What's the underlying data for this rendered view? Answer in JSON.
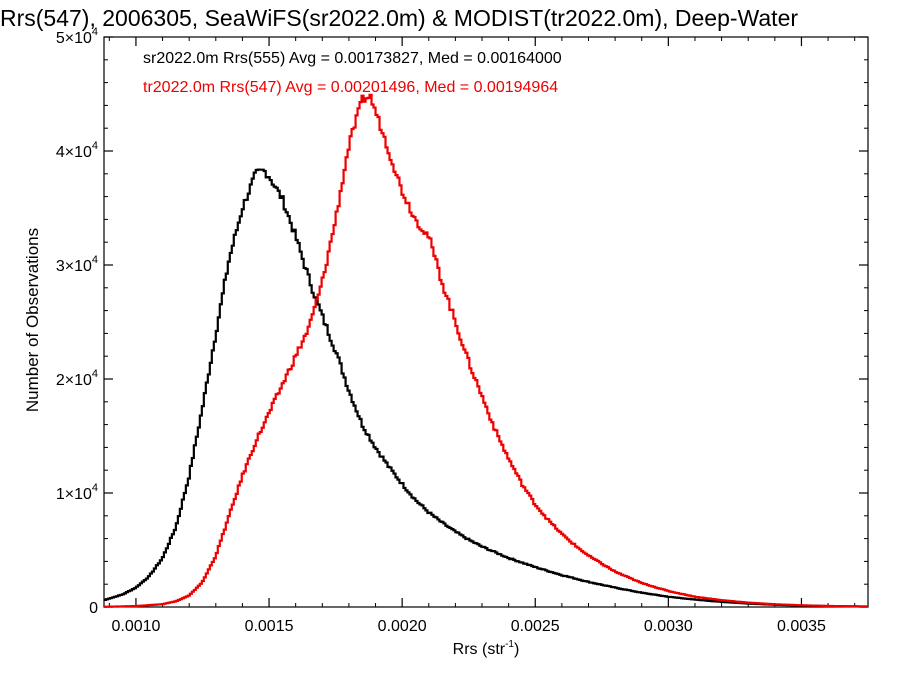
{
  "chart_data": {
    "type": "histogram",
    "title": "Rrs(547), 2006305, SeaWiFS(sr2022.0m) & MODIST(tr2022.0m), Deep-Water",
    "xlabel": "Rrs (str",
    "xlabel_sup": "-1",
    "xlabel_end": ")",
    "ylabel": "Number of Observations",
    "xlim": [
      0.00088,
      0.00375
    ],
    "ylim": [
      0,
      50000
    ],
    "xticks": [
      {
        "value": 0.001,
        "label": "0.0010"
      },
      {
        "value": 0.0015,
        "label": "0.0015"
      },
      {
        "value": 0.002,
        "label": "0.0020"
      },
      {
        "value": 0.0025,
        "label": "0.0025"
      },
      {
        "value": 0.003,
        "label": "0.0030"
      },
      {
        "value": 0.0035,
        "label": "0.0035"
      }
    ],
    "yticks": [
      {
        "value": 0,
        "label": "0",
        "sup": ""
      },
      {
        "value": 10000,
        "label": "1×10",
        "sup": "4"
      },
      {
        "value": 20000,
        "label": "2×10",
        "sup": "4"
      },
      {
        "value": 30000,
        "label": "3×10",
        "sup": "4"
      },
      {
        "value": 40000,
        "label": "4×10",
        "sup": "4"
      },
      {
        "value": 50000,
        "label": "5×10",
        "sup": "4"
      }
    ],
    "series": [
      {
        "name": "sr2022.0m Rrs(555)",
        "legend": "sr2022.0m Rrs(555) Avg = 0.00173827, Med = 0.00164000",
        "color": "#000000",
        "points": [
          [
            0.00088,
            600
          ],
          [
            0.00095,
            1100
          ],
          [
            0.001,
            1700
          ],
          [
            0.00105,
            2700
          ],
          [
            0.0011,
            4300
          ],
          [
            0.00115,
            7000
          ],
          [
            0.0012,
            11500
          ],
          [
            0.00125,
            17500
          ],
          [
            0.0013,
            24000
          ],
          [
            0.00135,
            30500
          ],
          [
            0.0014,
            35000
          ],
          [
            0.00145,
            38000
          ],
          [
            0.00148,
            38300
          ],
          [
            0.0015,
            37800
          ],
          [
            0.00155,
            35800
          ],
          [
            0.0016,
            32500
          ],
          [
            0.00165,
            28800
          ],
          [
            0.0017,
            25500
          ],
          [
            0.00175,
            22500
          ],
          [
            0.0018,
            19000
          ],
          [
            0.00185,
            16000
          ],
          [
            0.0019,
            14000
          ],
          [
            0.00195,
            12300
          ],
          [
            0.002,
            10800
          ],
          [
            0.00205,
            9400
          ],
          [
            0.0021,
            8300
          ],
          [
            0.00215,
            7400
          ],
          [
            0.0022,
            6600
          ],
          [
            0.00225,
            5900
          ],
          [
            0.0023,
            5300
          ],
          [
            0.00235,
            4800
          ],
          [
            0.0024,
            4300
          ],
          [
            0.0025,
            3500
          ],
          [
            0.0026,
            2800
          ],
          [
            0.0027,
            2200
          ],
          [
            0.0028,
            1700
          ],
          [
            0.0029,
            1250
          ],
          [
            0.003,
            900
          ],
          [
            0.0031,
            650
          ],
          [
            0.0032,
            450
          ],
          [
            0.0033,
            300
          ],
          [
            0.0034,
            200
          ],
          [
            0.0035,
            130
          ],
          [
            0.0036,
            80
          ],
          [
            0.00375,
            40
          ]
        ]
      },
      {
        "name": "tr2022.0m Rrs(547)",
        "legend": "tr2022.0m Rrs(547) Avg = 0.00201496, Med = 0.00194964",
        "color": "#ee0000",
        "points": [
          [
            0.00088,
            20
          ],
          [
            0.001,
            80
          ],
          [
            0.0011,
            250
          ],
          [
            0.00115,
            500
          ],
          [
            0.0012,
            1000
          ],
          [
            0.00125,
            2200
          ],
          [
            0.0013,
            4500
          ],
          [
            0.00135,
            8000
          ],
          [
            0.0014,
            11500
          ],
          [
            0.00145,
            14500
          ],
          [
            0.0015,
            17000
          ],
          [
            0.00155,
            19500
          ],
          [
            0.0016,
            22000
          ],
          [
            0.00165,
            24500
          ],
          [
            0.0017,
            28500
          ],
          [
            0.00175,
            34000
          ],
          [
            0.0018,
            40500
          ],
          [
            0.00185,
            44500
          ],
          [
            0.00188,
            44800
          ],
          [
            0.0019,
            43500
          ],
          [
            0.00195,
            40000
          ],
          [
            0.002,
            36500
          ],
          [
            0.00205,
            34000
          ],
          [
            0.0021,
            32500
          ],
          [
            0.00215,
            28500
          ],
          [
            0.0022,
            25000
          ],
          [
            0.00225,
            21500
          ],
          [
            0.0023,
            18500
          ],
          [
            0.00235,
            15500
          ],
          [
            0.0024,
            13000
          ],
          [
            0.00245,
            10800
          ],
          [
            0.0025,
            9000
          ],
          [
            0.00255,
            7600
          ],
          [
            0.0026,
            6400
          ],
          [
            0.00265,
            5400
          ],
          [
            0.0027,
            4500
          ],
          [
            0.0028,
            3100
          ],
          [
            0.0029,
            2100
          ],
          [
            0.003,
            1400
          ],
          [
            0.0031,
            900
          ],
          [
            0.0032,
            600
          ],
          [
            0.0033,
            380
          ],
          [
            0.0034,
            240
          ],
          [
            0.0035,
            150
          ],
          [
            0.0036,
            90
          ],
          [
            0.00375,
            40
          ]
        ]
      }
    ],
    "legend_position": "top-left"
  }
}
